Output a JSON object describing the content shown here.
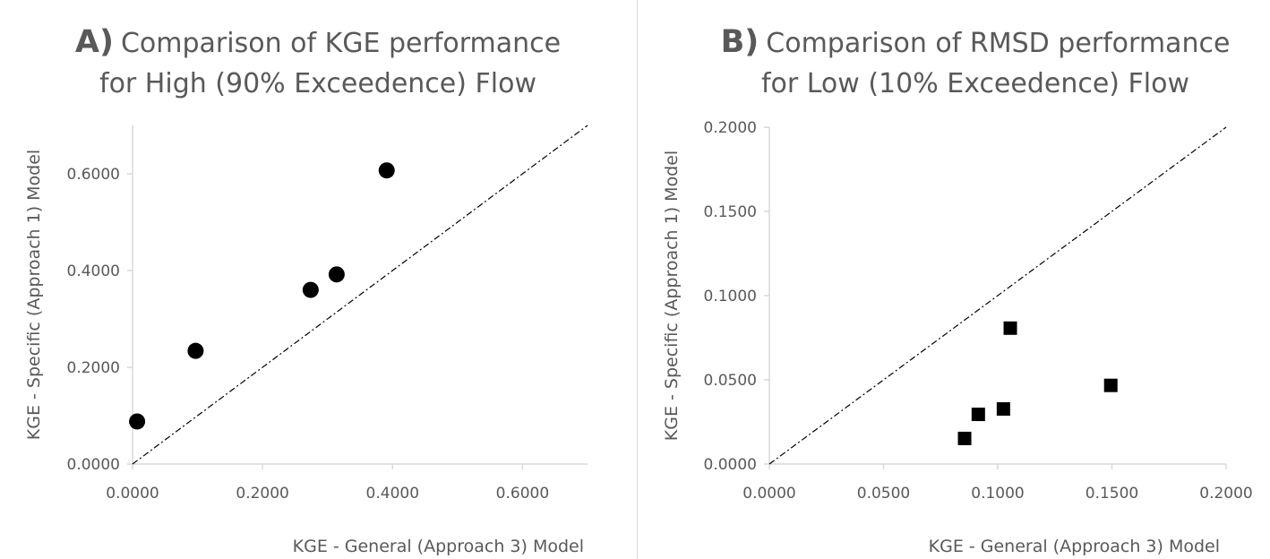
{
  "chart_data": [
    {
      "type": "scatter",
      "panel_letter": "A)",
      "title_lines": [
        "Comparison of KGE performance",
        "for High (90% Exceedence) Flow"
      ],
      "xlabel": "KGE - General (Approach 3) Model",
      "ylabel": "KGE - Specific (Approach 1)  Model",
      "xlim": [
        0,
        0.7
      ],
      "ylim": [
        0,
        0.7
      ],
      "xticks": [
        0,
        0.2,
        0.4,
        0.6
      ],
      "xtick_labels": [
        "0.0000",
        "0.2000",
        "0.4000",
        "0.6000"
      ],
      "yticks": [
        0,
        0.2,
        0.4,
        0.6
      ],
      "ytick_labels": [
        "0.0000",
        "0.2000",
        "0.4000",
        "0.6000"
      ],
      "marker": "circle",
      "marker_color": "#000000",
      "reference_line": "1:1 dash-dot",
      "grid": false,
      "series": [
        {
          "x": [
            0.007,
            0.097,
            0.274,
            0.314,
            0.391
          ],
          "y": [
            0.088,
            0.234,
            0.36,
            0.392,
            0.607
          ]
        }
      ]
    },
    {
      "type": "scatter",
      "panel_letter": "B)",
      "title_lines": [
        "Comparison of RMSD performance",
        "for Low (10% Exceedence) Flow"
      ],
      "xlabel": "KGE - General (Approach 3) Model",
      "ylabel": "KGE - Specific (Approach 1)  Model",
      "xlim": [
        0,
        0.2
      ],
      "ylim": [
        0,
        0.2
      ],
      "xticks": [
        0,
        0.05,
        0.1,
        0.15,
        0.2
      ],
      "xtick_labels": [
        "0.0000",
        "0.0500",
        "0.1000",
        "0.1500",
        "0.2000"
      ],
      "yticks": [
        0,
        0.05,
        0.1,
        0.15,
        0.2
      ],
      "ytick_labels": [
        "0.0000",
        "0.0500",
        "0.1000",
        "0.1500",
        "0.2000"
      ],
      "marker": "square",
      "marker_color": "#000000",
      "reference_line": "1:1 dash-dot",
      "grid": false,
      "series": [
        {
          "x": [
            0.0855,
            0.0915,
            0.1025,
            0.1055,
            0.1495
          ],
          "y": [
            0.0152,
            0.0295,
            0.0327,
            0.0807,
            0.0467
          ]
        }
      ]
    }
  ]
}
